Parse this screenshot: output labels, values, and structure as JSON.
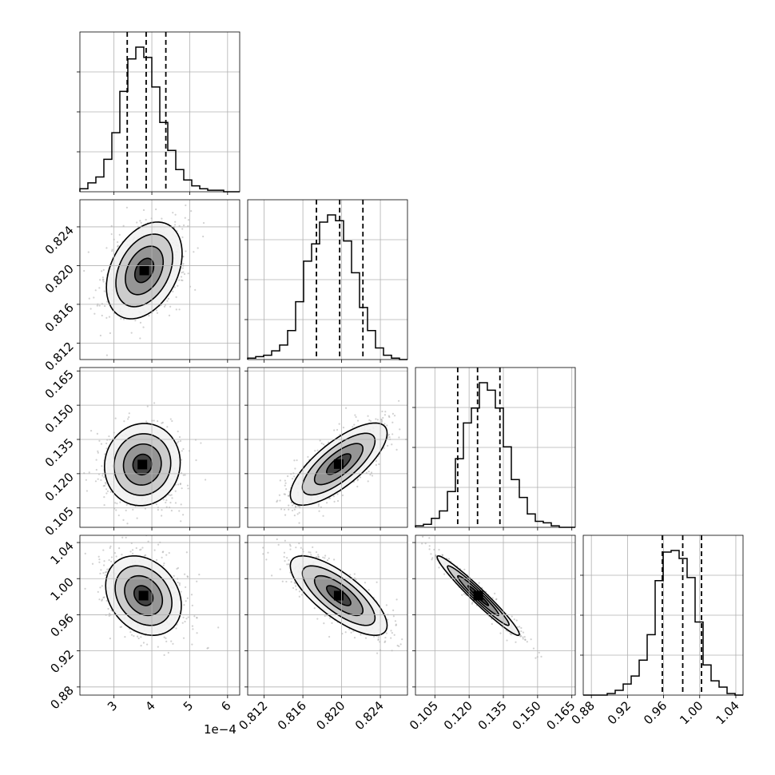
{
  "chart_data": {
    "type": "corner",
    "grid": true,
    "parameters": [
      {
        "index": 0,
        "range": [
          0.00021,
          0.000632
        ],
        "ticks": [
          0.0003,
          0.0004,
          0.0005,
          0.0006
        ],
        "tick_labels": [
          "3",
          "4",
          "5",
          "6"
        ],
        "offset_label": "1e−4"
      },
      {
        "index": 1,
        "range": [
          0.8103,
          0.8268
        ],
        "ticks": [
          0.812,
          0.816,
          0.82,
          0.824
        ],
        "tick_labels": [
          "0.812",
          "0.816",
          "0.820",
          "0.824"
        ],
        "offset_label": ""
      },
      {
        "index": 2,
        "range": [
          0.0965,
          0.1665
        ],
        "ticks": [
          0.105,
          0.12,
          0.135,
          0.15,
          0.165
        ],
        "tick_labels": [
          "0.105",
          "0.120",
          "0.135",
          "0.150",
          "0.165"
        ],
        "offset_label": ""
      },
      {
        "index": 3,
        "range": [
          0.871,
          1.048
        ],
        "ticks": [
          0.88,
          0.92,
          0.96,
          1.0,
          1.04
        ],
        "tick_labels": [
          "0.88",
          "0.92",
          "0.96",
          "1.00",
          "1.04"
        ],
        "offset_label": ""
      }
    ],
    "marginals": [
      {
        "param": 0,
        "bins": 20,
        "counts": [
          2,
          6,
          10,
          22,
          40,
          68,
          90,
          98,
          91,
          71,
          47,
          28,
          15,
          8,
          4,
          2,
          1,
          1,
          0,
          0
        ],
        "quantiles": [
          0.000335,
          0.000385,
          0.000437
        ]
      },
      {
        "param": 1,
        "bins": 20,
        "counts": [
          1,
          2,
          3,
          6,
          10,
          20,
          40,
          68,
          80,
          95,
          100,
          96,
          82,
          60,
          36,
          20,
          8,
          3,
          1,
          0
        ],
        "quantiles": [
          0.8174,
          0.8198,
          0.8222
        ]
      },
      {
        "param": 2,
        "bins": 20,
        "counts": [
          1,
          2,
          6,
          11,
          24,
          46,
          70,
          80,
          97,
          92,
          80,
          54,
          32,
          20,
          9,
          4,
          3,
          1,
          0,
          0
        ],
        "quantiles": [
          0.115,
          0.1237,
          0.1335
        ]
      },
      {
        "param": 3,
        "bins": 20,
        "counts": [
          0,
          0,
          0,
          1,
          3,
          7,
          12,
          22,
          38,
          72,
          90,
          91,
          86,
          74,
          46,
          19,
          9,
          5,
          1,
          0
        ],
        "quantiles": [
          0.9586,
          0.9812,
          1.002
        ]
      }
    ],
    "joint": [
      {
        "x": 0,
        "y": 1,
        "mean": [
          0.00038,
          0.8195
        ],
        "std": [
          5e-05,
          0.0025
        ],
        "corr": 0.35
      },
      {
        "x": 0,
        "y": 2,
        "mean": [
          0.000375,
          0.124
        ],
        "std": [
          5e-05,
          0.009
        ],
        "corr": 0.05
      },
      {
        "x": 1,
        "y": 2,
        "mean": [
          0.8197,
          0.1242
        ],
        "std": [
          0.0025,
          0.009
        ],
        "corr": 0.75
      },
      {
        "x": 0,
        "y": 3,
        "mean": [
          0.000378,
          0.9812
        ],
        "std": [
          5e-05,
          0.022
        ],
        "corr": -0.25
      },
      {
        "x": 1,
        "y": 3,
        "mean": [
          0.8197,
          0.9812
        ],
        "std": [
          0.0025,
          0.022
        ],
        "corr": -0.75
      },
      {
        "x": 2,
        "y": 3,
        "mean": [
          0.124,
          0.9812
        ],
        "std": [
          0.009,
          0.022
        ],
        "corr": -0.97
      }
    ],
    "contour_sigma_levels": [
      0.5,
      1.0,
      1.5,
      2.0
    ],
    "colors": {
      "line": "#000000",
      "points": "#9a9a9a",
      "grid": "#b0b0b0"
    }
  }
}
